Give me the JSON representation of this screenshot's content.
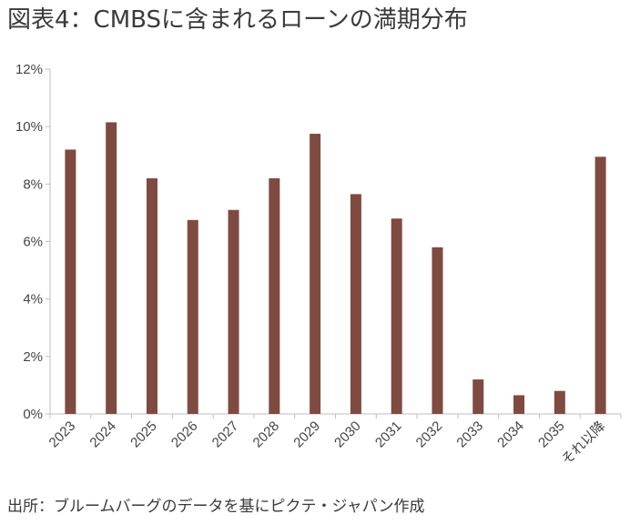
{
  "title": "図表4：CMBSに含まれるローンの満期分布",
  "source": "出所：ブルームバーグのデータを基にピクテ・ジャパン作成",
  "colors": {
    "bar": "#7f4a40",
    "axis": "#bfbfbf",
    "text": "#444444"
  },
  "chart_data": {
    "type": "bar",
    "title": "図表4：CMBSに含まれるローンの満期分布",
    "xlabel": "",
    "ylabel": "",
    "categories": [
      "2023",
      "2024",
      "2025",
      "2026",
      "2027",
      "2028",
      "2029",
      "2030",
      "2031",
      "2032",
      "2033",
      "2034",
      "2035",
      "それ以降"
    ],
    "values": [
      9.2,
      10.15,
      8.2,
      6.75,
      7.1,
      8.2,
      9.75,
      7.65,
      6.8,
      5.8,
      1.2,
      0.65,
      0.8,
      8.95
    ],
    "unit": "%",
    "ylim": [
      0,
      12
    ],
    "yticks": [
      0,
      2,
      4,
      6,
      8,
      10,
      12
    ],
    "ytick_labels": [
      "0%",
      "2%",
      "4%",
      "6%",
      "8%",
      "10%",
      "12%"
    ],
    "grid": false,
    "legend": "none"
  }
}
